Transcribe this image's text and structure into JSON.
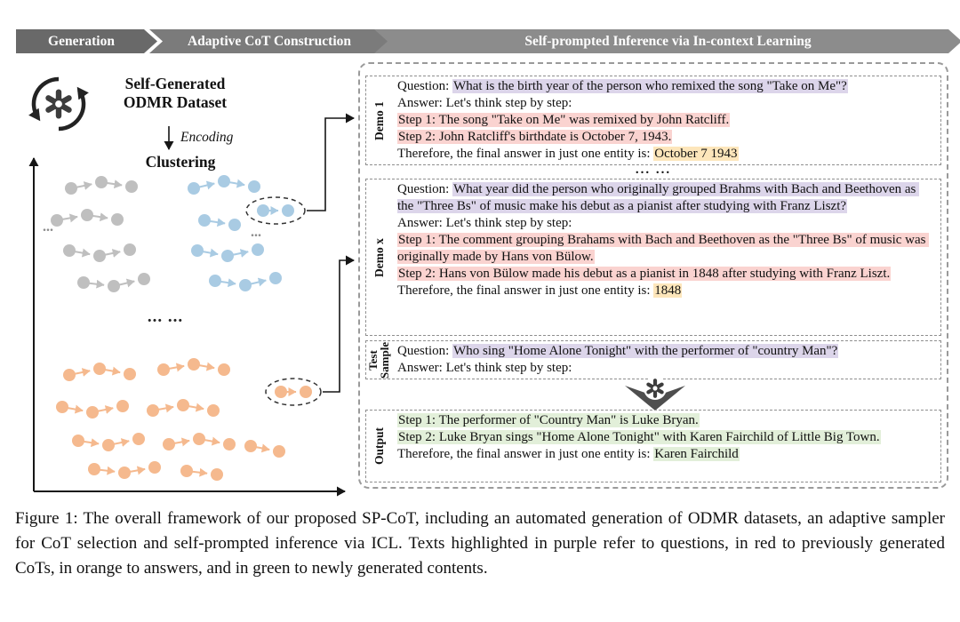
{
  "banner": {
    "segments": [
      {
        "label": "Generation"
      },
      {
        "label": "Adaptive CoT Construction"
      },
      {
        "label": "Self-prompted Inference via In-context Learning"
      }
    ]
  },
  "diagram": {
    "dataset_title_line1": "Self-Generated",
    "dataset_title_line2": "ODMR Dataset",
    "encoding_label": "Encoding",
    "clustering_label": "Clustering",
    "cluster_ellipsis": "... ...",
    "small_ellipsis": "...",
    "cluster_colors": {
      "gray": "#bfbfbf",
      "blue": "#a9cbe3",
      "orange": "#f5b98e"
    }
  },
  "panel": {
    "separator": "... ...",
    "highlight_colors": {
      "question": "#dcd5ea",
      "cot": "#fad3d0",
      "answer": "#fde6bb",
      "new_content": "#e2efd9"
    },
    "demo1": {
      "label": "Demo 1",
      "question_prefix": "Question: ",
      "question": "What is the birth year of the person who remixed the song \"Take on Me\"?",
      "answer_line": "Answer: Let's think step by step:",
      "step1": "Step 1: The song \"Take on Me\" was remixed by John Ratcliff.",
      "step2": "Step 2: John Ratcliff's birthdate is October 7, 1943.",
      "therefore_prefix": "Therefore, the final answer in just one entity is: ",
      "final_answer": "October 7 1943"
    },
    "demo_x": {
      "label": "Demo x",
      "question_prefix": "Question: ",
      "question": "What year did the person who originally grouped Brahms with Bach and Beethoven as the \"Three Bs\" of music make his debut as a pianist after studying with Franz Liszt?",
      "answer_line": "Answer: Let's think step by step:",
      "step1": "Step 1: The comment grouping Brahams with Bach and Beethoven as the \"Three Bs\" of music was originally made by Hans von Bülow.",
      "step2": "Step 2: Hans von Bülow made his debut as a pianist in 1848 after studying with Franz Liszt.",
      "therefore_prefix": "Therefore, the final answer in just one entity is: ",
      "final_answer": "1848"
    },
    "test_sample": {
      "label": "Test Sample",
      "question_prefix": "Question: ",
      "question": "Who sing \"Home Alone Tonight\" with the performer of \"country Man\"?",
      "answer_line": "Answer: Let's think step by step:"
    },
    "output": {
      "label": "Output",
      "step1": "Step 1: The performer of \"Country Man\" is Luke Bryan.",
      "step2": "Step 2: Luke Bryan sings \"Home Alone Tonight\" with Karen Fairchild of Little Big Town.",
      "therefore_prefix": "Therefore, the final answer in just one entity is: ",
      "final_answer": "Karen Fairchild"
    }
  },
  "caption": "Figure 1: The overall framework of our proposed SP-CoT, including an automated generation of ODMR datasets, an adaptive sampler for CoT selection and self-prompted inference via ICL. Texts highlighted in purple refer to questions, in red to previously generated CoTs, in orange to answers, and in green to newly generated contents."
}
